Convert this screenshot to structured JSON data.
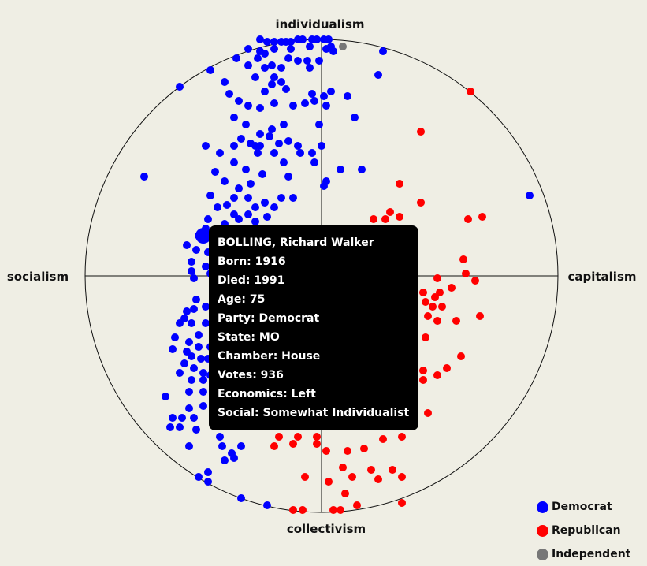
{
  "chart_data": {
    "type": "scatter",
    "title": "",
    "axes": {
      "top": "individualism",
      "bottom": "collectivism",
      "left": "socialism",
      "right": "capitalism"
    },
    "xlim": [
      -1,
      1
    ],
    "ylim": [
      -1,
      1
    ],
    "x_meaning": "economics: -1 socialism, +1 capitalism",
    "y_meaning": "social: -1 collectivism, +1 individualism",
    "frame": "unit circle with crosshair",
    "legend_position": "bottom-right",
    "series": [
      {
        "name": "Democrat",
        "color": "#0000ff",
        "points": [
          [
            -0.26,
            1.0
          ],
          [
            -0.23,
            0.99
          ],
          [
            -0.2,
            0.99
          ],
          [
            -0.17,
            0.99
          ],
          [
            -0.15,
            0.99
          ],
          [
            -0.13,
            0.99
          ],
          [
            -0.1,
            1.0
          ],
          [
            -0.08,
            1.0
          ],
          [
            -0.04,
            1.0
          ],
          [
            -0.02,
            1.0
          ],
          [
            0.01,
            1.0
          ],
          [
            0.03,
            1.0
          ],
          [
            -0.31,
            0.96
          ],
          [
            -0.26,
            0.95
          ],
          [
            -0.2,
            0.96
          ],
          [
            -0.13,
            0.96
          ],
          [
            -0.05,
            0.97
          ],
          [
            0.02,
            0.96
          ],
          [
            0.04,
            0.97
          ],
          [
            -0.36,
            0.92
          ],
          [
            -0.27,
            0.92
          ],
          [
            -0.24,
            0.94
          ],
          [
            -0.14,
            0.92
          ],
          [
            -0.1,
            0.91
          ],
          [
            -0.06,
            0.91
          ],
          [
            -0.01,
            0.91
          ],
          [
            0.05,
            0.95
          ],
          [
            -0.47,
            0.87
          ],
          [
            -0.31,
            0.89
          ],
          [
            -0.24,
            0.88
          ],
          [
            -0.21,
            0.89
          ],
          [
            -0.17,
            0.88
          ],
          [
            0.26,
            0.95
          ],
          [
            -0.6,
            0.8
          ],
          [
            -0.41,
            0.82
          ],
          [
            -0.28,
            0.84
          ],
          [
            -0.2,
            0.84
          ],
          [
            -0.17,
            0.82
          ],
          [
            -0.05,
            0.88
          ],
          [
            -0.24,
            0.78
          ],
          [
            -0.21,
            0.81
          ],
          [
            -0.15,
            0.79
          ],
          [
            -0.04,
            0.77
          ],
          [
            0.04,
            0.78
          ],
          [
            0.01,
            0.76
          ],
          [
            0.24,
            0.85
          ],
          [
            -0.39,
            0.77
          ],
          [
            -0.35,
            0.74
          ],
          [
            -0.31,
            0.72
          ],
          [
            -0.26,
            0.71
          ],
          [
            -0.2,
            0.73
          ],
          [
            -0.12,
            0.72
          ],
          [
            -0.07,
            0.73
          ],
          [
            -0.03,
            0.74
          ],
          [
            0.02,
            0.72
          ],
          [
            0.11,
            0.76
          ],
          [
            0.14,
            0.67
          ],
          [
            -0.37,
            0.67
          ],
          [
            -0.32,
            0.64
          ],
          [
            -0.26,
            0.6
          ],
          [
            -0.21,
            0.62
          ],
          [
            -0.16,
            0.64
          ],
          [
            -0.01,
            0.64
          ],
          [
            -0.49,
            0.55
          ],
          [
            -0.37,
            0.55
          ],
          [
            -0.34,
            0.58
          ],
          [
            -0.3,
            0.56
          ],
          [
            -0.28,
            0.55
          ],
          [
            -0.26,
            0.55
          ],
          [
            -0.22,
            0.59
          ],
          [
            -0.18,
            0.56
          ],
          [
            -0.14,
            0.57
          ],
          [
            -0.1,
            0.55
          ],
          [
            -0.04,
            0.52
          ],
          [
            -0.43,
            0.52
          ],
          [
            -0.37,
            0.48
          ],
          [
            -0.32,
            0.45
          ],
          [
            -0.27,
            0.52
          ],
          [
            -0.2,
            0.52
          ],
          [
            -0.16,
            0.48
          ],
          [
            -0.09,
            0.52
          ],
          [
            -0.03,
            0.48
          ],
          [
            0.0,
            0.55
          ],
          [
            0.08,
            0.45
          ],
          [
            -0.75,
            0.42
          ],
          [
            -0.45,
            0.44
          ],
          [
            -0.41,
            0.4
          ],
          [
            -0.35,
            0.37
          ],
          [
            -0.3,
            0.39
          ],
          [
            -0.25,
            0.43
          ],
          [
            -0.14,
            0.42
          ],
          [
            0.01,
            0.38
          ],
          [
            0.02,
            0.4
          ],
          [
            0.17,
            0.45
          ],
          [
            0.88,
            0.34
          ],
          [
            -0.47,
            0.34
          ],
          [
            -0.44,
            0.29
          ],
          [
            -0.4,
            0.3
          ],
          [
            -0.37,
            0.33
          ],
          [
            -0.31,
            0.33
          ],
          [
            -0.28,
            0.29
          ],
          [
            -0.24,
            0.31
          ],
          [
            -0.2,
            0.29
          ],
          [
            -0.17,
            0.33
          ],
          [
            -0.12,
            0.33
          ],
          [
            -0.48,
            0.24
          ],
          [
            -0.41,
            0.22
          ],
          [
            -0.37,
            0.26
          ],
          [
            -0.35,
            0.24
          ],
          [
            -0.31,
            0.26
          ],
          [
            -0.28,
            0.23
          ],
          [
            -0.23,
            0.25
          ],
          [
            -0.52,
            0.17
          ],
          [
            -0.49,
            0.2
          ],
          [
            -0.45,
            0.16
          ],
          [
            -0.39,
            0.18
          ],
          [
            -0.34,
            0.14
          ],
          [
            -0.57,
            0.13
          ],
          [
            -0.53,
            0.11
          ],
          [
            -0.48,
            0.1
          ],
          [
            -0.44,
            0.12
          ],
          [
            -0.38,
            0.08
          ],
          [
            -0.55,
            0.06
          ],
          [
            -0.49,
            0.04
          ],
          [
            -0.55,
            0.02
          ],
          [
            -0.49,
            0.16
          ],
          [
            -0.54,
            -0.01
          ],
          [
            -0.47,
            0.01
          ],
          [
            -0.44,
            -0.04
          ],
          [
            -0.53,
            -0.1
          ],
          [
            -0.54,
            -0.14
          ],
          [
            -0.57,
            -0.15
          ],
          [
            -0.49,
            -0.13
          ],
          [
            -0.58,
            -0.18
          ],
          [
            -0.6,
            -0.2
          ],
          [
            -0.55,
            -0.2
          ],
          [
            -0.52,
            -0.25
          ],
          [
            -0.49,
            -0.2
          ],
          [
            -0.62,
            -0.26
          ],
          [
            -0.56,
            -0.28
          ],
          [
            -0.52,
            -0.3
          ],
          [
            -0.47,
            -0.3
          ],
          [
            -0.45,
            -0.27
          ],
          [
            -0.48,
            -0.35
          ],
          [
            -0.63,
            -0.31
          ],
          [
            -0.57,
            -0.32
          ],
          [
            -0.55,
            -0.34
          ],
          [
            -0.51,
            -0.35
          ],
          [
            -0.43,
            -0.32
          ],
          [
            -0.58,
            -0.37
          ],
          [
            -0.54,
            -0.39
          ],
          [
            -0.5,
            -0.41
          ],
          [
            -0.47,
            -0.42
          ],
          [
            -0.6,
            -0.41
          ],
          [
            -0.55,
            -0.44
          ],
          [
            -0.5,
            -0.44
          ],
          [
            -0.44,
            -0.48
          ],
          [
            -0.66,
            -0.51
          ],
          [
            -0.56,
            -0.49
          ],
          [
            -0.5,
            -0.49
          ],
          [
            -0.45,
            -0.47
          ],
          [
            -0.56,
            -0.56
          ],
          [
            -0.5,
            -0.55
          ],
          [
            -0.45,
            -0.55
          ],
          [
            -0.4,
            -0.55
          ],
          [
            -0.63,
            -0.6
          ],
          [
            -0.59,
            -0.6
          ],
          [
            -0.54,
            -0.6
          ],
          [
            -0.64,
            -0.64
          ],
          [
            -0.6,
            -0.64
          ],
          [
            -0.53,
            -0.65
          ],
          [
            -0.43,
            -0.68
          ],
          [
            -0.56,
            -0.72
          ],
          [
            -0.42,
            -0.72
          ],
          [
            -0.34,
            -0.72
          ],
          [
            -0.38,
            -0.75
          ],
          [
            -0.37,
            -0.77
          ],
          [
            -0.41,
            -0.78
          ],
          [
            -0.48,
            -0.83
          ],
          [
            -0.52,
            -0.85
          ],
          [
            -0.48,
            -0.87
          ],
          [
            -0.34,
            -0.94
          ],
          [
            -0.23,
            -0.97
          ]
        ],
        "highlight": {
          "name": "BOLLING, Richard Walker",
          "x": -0.5,
          "y": 0.17
        }
      },
      {
        "name": "Republican",
        "color": "#ff0000",
        "points": [
          [
            0.63,
            0.78
          ],
          [
            0.42,
            0.61
          ],
          [
            0.33,
            0.39
          ],
          [
            0.42,
            0.31
          ],
          [
            0.33,
            0.25
          ],
          [
            0.29,
            0.27
          ],
          [
            0.27,
            0.24
          ],
          [
            0.22,
            0.24
          ],
          [
            0.62,
            0.24
          ],
          [
            0.68,
            0.25
          ],
          [
            0.23,
            0.16
          ],
          [
            0.26,
            0.13
          ],
          [
            0.38,
            0.14
          ],
          [
            0.29,
            0.07
          ],
          [
            0.3,
            0.06
          ],
          [
            0.28,
            0.05
          ],
          [
            0.19,
            0.05
          ],
          [
            0.13,
            0.06
          ],
          [
            0.06,
            0.04
          ],
          [
            0.15,
            0.02
          ],
          [
            0.23,
            -0.01
          ],
          [
            0.49,
            -0.01
          ],
          [
            0.6,
            0.07
          ],
          [
            0.61,
            0.01
          ],
          [
            0.55,
            -0.05
          ],
          [
            0.65,
            -0.02
          ],
          [
            0.5,
            -0.07
          ],
          [
            0.43,
            -0.07
          ],
          [
            0.36,
            -0.05
          ],
          [
            0.33,
            -0.03
          ],
          [
            0.26,
            -0.08
          ],
          [
            0.31,
            -0.12
          ],
          [
            0.36,
            -0.11
          ],
          [
            0.44,
            -0.11
          ],
          [
            0.48,
            -0.09
          ],
          [
            0.51,
            -0.13
          ],
          [
            0.47,
            -0.13
          ],
          [
            0.45,
            -0.17
          ],
          [
            0.49,
            -0.19
          ],
          [
            0.44,
            -0.26
          ],
          [
            0.67,
            -0.17
          ],
          [
            0.57,
            -0.19
          ],
          [
            0.59,
            -0.34
          ],
          [
            0.53,
            -0.39
          ],
          [
            0.49,
            -0.42
          ],
          [
            0.43,
            -0.4
          ],
          [
            0.43,
            -0.44
          ],
          [
            0.45,
            -0.58
          ],
          [
            0.34,
            -0.68
          ],
          [
            0.26,
            -0.69
          ],
          [
            0.18,
            -0.73
          ],
          [
            0.11,
            -0.74
          ],
          [
            0.02,
            -0.74
          ],
          [
            -0.02,
            -0.71
          ],
          [
            -0.12,
            -0.71
          ],
          [
            -0.2,
            -0.72
          ],
          [
            -0.18,
            -0.68
          ],
          [
            -0.1,
            -0.68
          ],
          [
            -0.02,
            -0.68
          ],
          [
            0.09,
            -0.81
          ],
          [
            0.21,
            -0.82
          ],
          [
            0.24,
            -0.86
          ],
          [
            0.13,
            -0.85
          ],
          [
            0.3,
            -0.82
          ],
          [
            0.34,
            -0.85
          ],
          [
            -0.07,
            -0.85
          ],
          [
            0.03,
            -0.87
          ],
          [
            0.1,
            -0.92
          ],
          [
            0.34,
            -0.96
          ],
          [
            0.15,
            -0.97
          ],
          [
            0.08,
            -0.99
          ],
          [
            0.05,
            -0.99
          ],
          [
            -0.08,
            -0.99
          ],
          [
            -0.12,
            -0.99
          ]
        ]
      },
      {
        "name": "Independent",
        "color": "#777777",
        "points": [
          [
            0.09,
            0.97
          ]
        ]
      }
    ]
  },
  "tooltip": {
    "lines": [
      "BOLLING, Richard Walker",
      "Born: 1916",
      "Died: 1991",
      "Age: 75",
      "Party: Democrat",
      "State: MO",
      "Chamber: House",
      "Votes: 936",
      "Economics: Left",
      "Social: Somewhat Individualist"
    ]
  },
  "legend": {
    "items": [
      {
        "label": "Democrat",
        "color": "#0000ff"
      },
      {
        "label": "Republican",
        "color": "#ff0000"
      },
      {
        "label": "Independent",
        "color": "#777777"
      }
    ]
  }
}
